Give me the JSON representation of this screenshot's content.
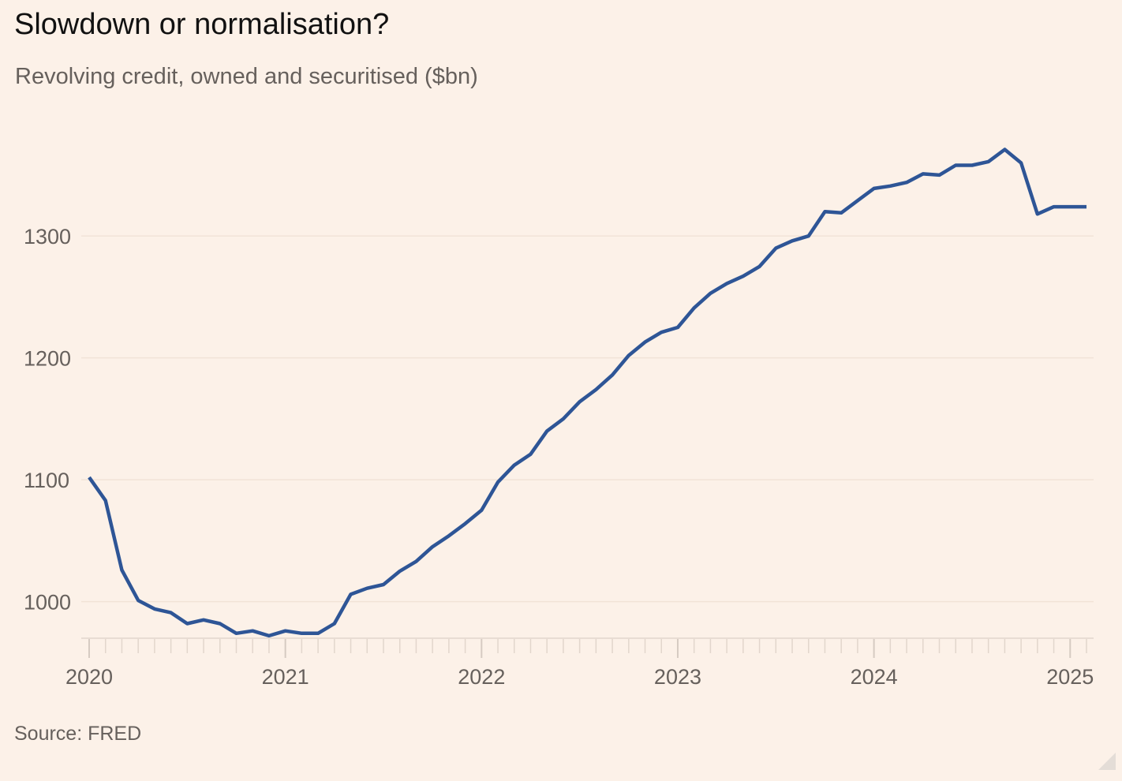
{
  "header": {
    "title": "Slowdown or normalisation?",
    "subtitle": "Revolving credit, owned and securitised ($bn)"
  },
  "footer": {
    "source": "Source: FRED"
  },
  "colors": {
    "background": "#fcf1e8",
    "line": "#2e5596",
    "grid": "#f1e3d7",
    "axis": "#e2d6cc",
    "tick_label": "#66605c"
  },
  "chart_data": {
    "type": "line",
    "title": "Slowdown or normalisation?",
    "subtitle": "Revolving credit, owned and securitised ($bn)",
    "xlabel": "",
    "ylabel": "",
    "ylim": [
      970,
      1370
    ],
    "y_ticks": [
      1000,
      1100,
      1200,
      1300
    ],
    "x_ticks": [
      "2020",
      "2021",
      "2022",
      "2023",
      "2024",
      "2025"
    ],
    "grid": true,
    "series": [
      {
        "x": [
          "2020-01",
          "2020-02",
          "2020-03",
          "2020-04",
          "2020-05",
          "2020-06",
          "2020-07",
          "2020-08",
          "2020-09",
          "2020-10",
          "2020-11",
          "2020-12",
          "2021-01",
          "2021-02",
          "2021-03",
          "2021-04",
          "2021-05",
          "2021-06",
          "2021-07",
          "2021-08",
          "2021-09",
          "2021-10",
          "2021-11",
          "2021-12",
          "2022-01",
          "2022-02",
          "2022-03",
          "2022-04",
          "2022-05",
          "2022-06",
          "2022-07",
          "2022-08",
          "2022-09",
          "2022-10",
          "2022-11",
          "2022-12",
          "2023-01",
          "2023-02",
          "2023-03",
          "2023-04",
          "2023-05",
          "2023-06",
          "2023-07",
          "2023-08",
          "2023-09",
          "2023-10",
          "2023-11",
          "2023-12",
          "2024-01",
          "2024-02",
          "2024-03",
          "2024-04",
          "2024-05",
          "2024-06",
          "2024-07",
          "2024-08",
          "2024-09",
          "2024-10",
          "2024-11",
          "2024-12",
          "2025-01",
          "2025-02"
        ],
        "values": [
          1102,
          1083,
          1026,
          1001,
          994,
          991,
          982,
          985,
          982,
          974,
          976,
          972,
          976,
          974,
          974,
          982,
          1006,
          1011,
          1014,
          1025,
          1033,
          1045,
          1054,
          1064,
          1075,
          1098,
          1112,
          1121,
          1140,
          1150,
          1164,
          1174,
          1186,
          1202,
          1213,
          1221,
          1225,
          1241,
          1253,
          1261,
          1267,
          1275,
          1290,
          1296,
          1300,
          1320,
          1319,
          1329,
          1339,
          1341,
          1344,
          1351,
          1350,
          1358,
          1358,
          1361,
          1371,
          1360,
          1318,
          1324,
          1324,
          1324
        ]
      }
    ]
  }
}
